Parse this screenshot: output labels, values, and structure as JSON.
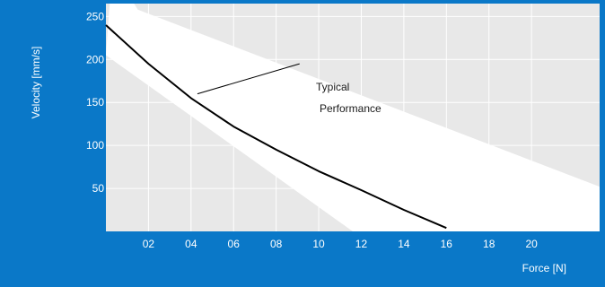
{
  "chart_data": {
    "type": "line",
    "title": "",
    "xlabel": "Force [N]",
    "ylabel": "Velocity [mm/s]",
    "xlim": [
      0,
      23.2
    ],
    "ylim": [
      0,
      265
    ],
    "x_ticks": [
      2,
      4,
      6,
      8,
      10,
      12,
      14,
      16,
      18,
      20
    ],
    "x_tick_labels": [
      "02",
      "04",
      "06",
      "08",
      "10",
      "12",
      "14",
      "16",
      "18",
      "20"
    ],
    "y_ticks": [
      50,
      100,
      150,
      200,
      250
    ],
    "y_tick_labels": [
      "50",
      "100",
      "150",
      "200",
      "250"
    ],
    "grid": true,
    "series": [
      {
        "x": [
          0,
          2,
          4,
          6,
          8,
          10,
          12,
          14,
          16
        ],
        "y": [
          240,
          195,
          155,
          122,
          95,
          70,
          48,
          25,
          4
        ]
      }
    ],
    "band": {
      "upper": {
        "x": [
          0.3,
          1.5,
          23.2
        ],
        "y": [
          305,
          258,
          52
        ]
      },
      "lower": {
        "x": [
          0,
          11.6
        ],
        "y": [
          205,
          0
        ]
      },
      "right": {
        "x": [
          20.8,
          23.2
        ],
        "y": [
          0,
          0
        ]
      }
    },
    "annotation": {
      "lines": [
        "Typical",
        "Performance"
      ],
      "pointer_from": {
        "x": 9.1,
        "y": 195
      },
      "pointer_to": {
        "x": 4.3,
        "y": 160
      }
    },
    "colors": {
      "frame": "#0a78c8",
      "plot_background": "#e8e8e8",
      "band": "#ffffff",
      "grid": "#ffffff",
      "line": "#000000",
      "text_on_frame": "#ffffff"
    }
  }
}
